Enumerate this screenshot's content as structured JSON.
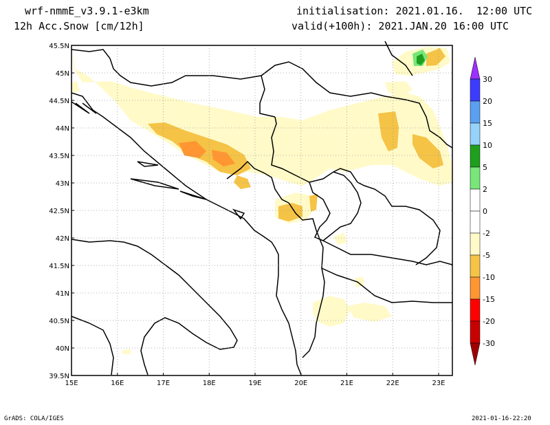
{
  "header": {
    "model": "wrf-nmmE_v3.9.1-e3km",
    "field": "12h Acc.Snow [cm/12h]",
    "initialisation": "initialisation: 2021.01.16.  12:00 UTC",
    "valid": "valid(+100h): 2021.JAN.20 16:00 UTC"
  },
  "footer": {
    "credit": "GrADS: COLA/IGES",
    "timestamp": "2021-01-16-22:20"
  },
  "map": {
    "lat_labels": [
      "45.5N",
      "45N",
      "44.5N",
      "44N",
      "43.5N",
      "43N",
      "42.5N",
      "42N",
      "41.5N",
      "41N",
      "40.5N",
      "40N",
      "39.5N"
    ],
    "lon_labels": [
      "15E",
      "16E",
      "17E",
      "18E",
      "19E",
      "20E",
      "21E",
      "22E",
      "23E"
    ],
    "lon_range": [
      15,
      23.3
    ],
    "lat_range": [
      39.5,
      45.5
    ],
    "grid": true
  },
  "colorbar": {
    "labels": [
      "30",
      "20",
      "15",
      "10",
      "5",
      "2",
      "0",
      "-2",
      "-5",
      "-10",
      "-15",
      "-20",
      "-30"
    ],
    "colors": [
      "#9b30ff",
      "#3c3cff",
      "#5aa0f0",
      "#96d2fa",
      "#1ea01e",
      "#78e678",
      "#ffffff",
      "#ffffff",
      "#fffac8",
      "#f5c346",
      "#ff9632",
      "#ff0000",
      "#c80000",
      "#a00000"
    ]
  },
  "snow_colors": {
    "light": "#fffac8",
    "moderate": "#f5c346",
    "heavy": "#ff9632",
    "green_light": "#78e678",
    "green_dark": "#1ea01e"
  }
}
